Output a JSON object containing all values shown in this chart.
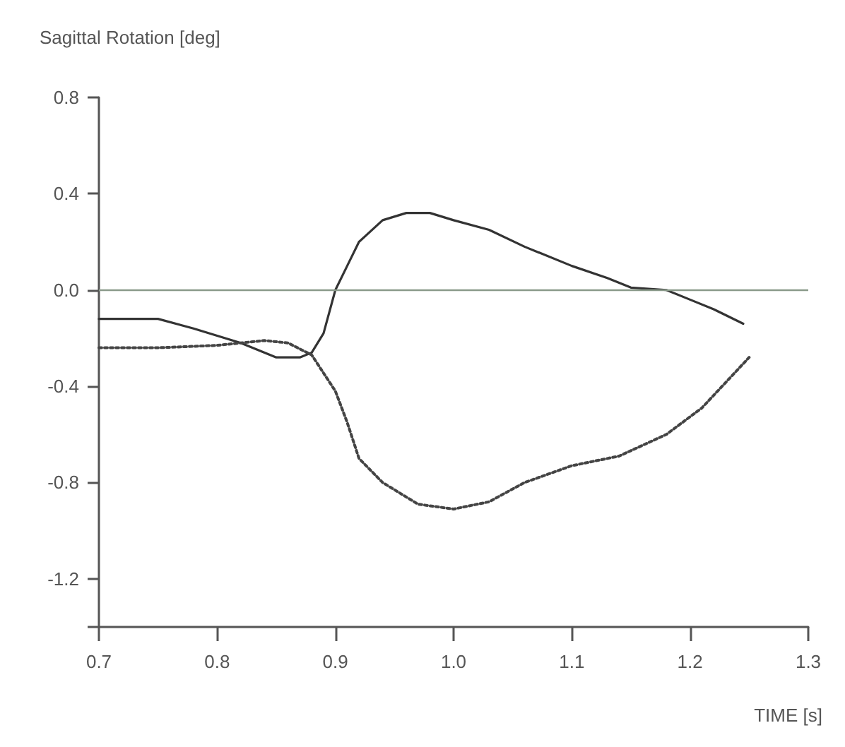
{
  "chart_data": {
    "type": "line",
    "ylabel": "Sagittal Rotation [deg]",
    "xlabel": "TIME [s]",
    "xlim": [
      0.7,
      1.3
    ],
    "xticks": [
      0.7,
      0.8,
      0.9,
      {
        "value": 1,
        "label": "1.0"
      },
      1.1,
      1.2,
      1.3
    ],
    "ylim": [
      -1.4,
      0.8
    ],
    "yticks": [
      {
        "value": -1.4,
        "label": null
      },
      -1.2,
      -0.8,
      -0.4,
      {
        "value": 0,
        "label": "0.0"
      },
      0.4,
      0.8
    ],
    "grid": false,
    "marker": "none",
    "ref_lines": [
      {
        "axis": "y",
        "value": 0,
        "label": null,
        "color": "#8a9a8a"
      }
    ],
    "series": [
      {
        "color": "#333333",
        "line_style": "solid",
        "x": [
          0.7,
          0.75,
          0.78,
          0.82,
          0.85,
          0.87,
          0.88,
          0.89,
          0.9,
          0.91,
          0.92,
          0.94,
          0.96,
          0.98,
          1.0,
          1.03,
          1.06,
          1.1,
          1.13,
          1.15,
          1.18,
          1.2,
          1.22,
          1.245
        ],
        "values": [
          -0.12,
          -0.12,
          -0.16,
          -0.22,
          -0.28,
          -0.28,
          -0.26,
          -0.18,
          0.0,
          0.1,
          0.2,
          0.29,
          0.32,
          0.32,
          0.29,
          0.25,
          0.18,
          0.1,
          0.05,
          0.01,
          0.0,
          -0.04,
          -0.08,
          -0.14
        ]
      },
      {
        "color": "#444444",
        "line_style": "dotted",
        "x": [
          0.7,
          0.75,
          0.8,
          0.84,
          0.86,
          0.88,
          0.9,
          0.91,
          0.92,
          0.94,
          0.97,
          1.0,
          1.03,
          1.06,
          1.1,
          1.14,
          1.18,
          1.21,
          1.25
        ],
        "values": [
          -0.24,
          -0.24,
          -0.23,
          -0.21,
          -0.22,
          -0.27,
          -0.42,
          -0.55,
          -0.7,
          -0.8,
          -0.89,
          -0.91,
          -0.88,
          -0.8,
          -0.73,
          -0.69,
          -0.6,
          -0.49,
          -0.28
        ]
      }
    ]
  }
}
